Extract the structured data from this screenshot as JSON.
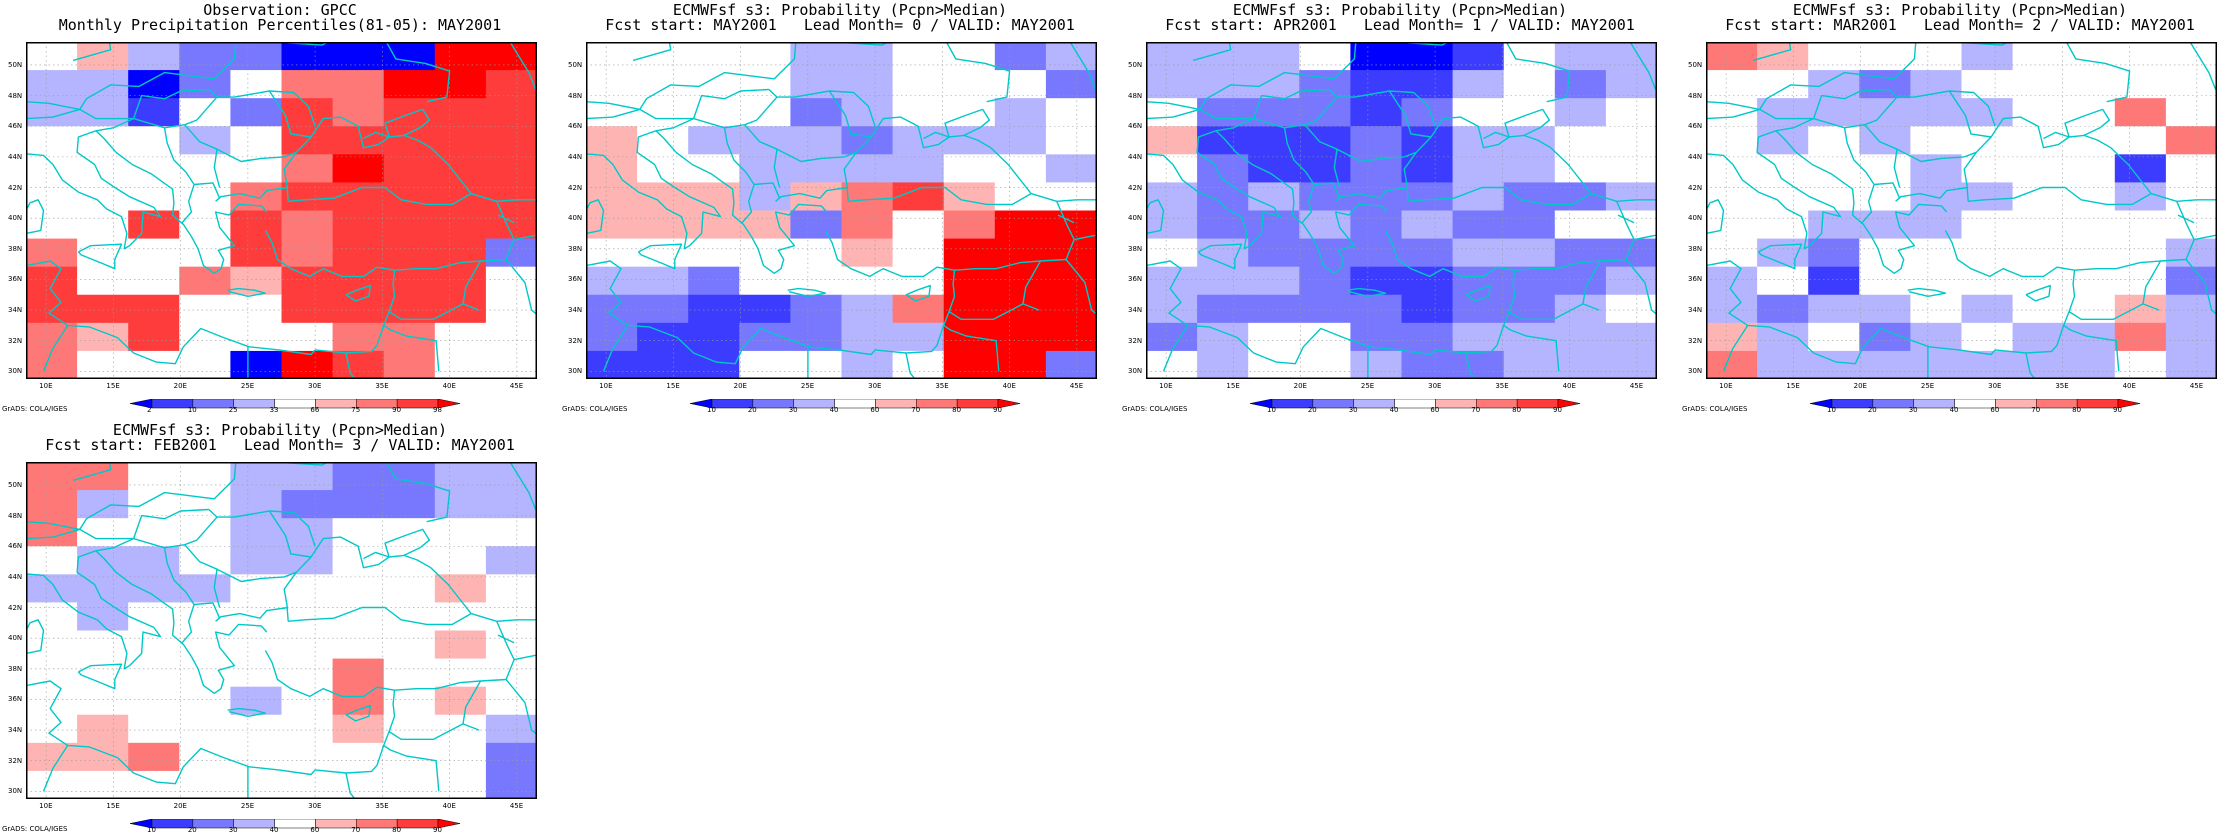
{
  "credit": "GrADS: COLA/IGES",
  "colors": {
    "coast": "#00c8c8",
    "grid": "#9a9a9a",
    "frame": "#000000"
  },
  "axes": {
    "lon": [
      "10E",
      "15E",
      "20E",
      "25E",
      "30E",
      "35E",
      "40E",
      "45E"
    ],
    "lat": [
      "30N",
      "32N",
      "34N",
      "36N",
      "38N",
      "40N",
      "42N",
      "44N",
      "46N",
      "48N",
      "50N"
    ]
  },
  "scales": {
    "obs": {
      "labels": [
        "2",
        "10",
        "25",
        "33",
        "66",
        "75",
        "90",
        "98"
      ],
      "colors": [
        "#0000ff",
        "#3c3cff",
        "#7878ff",
        "#b4b4ff",
        "#ffffff",
        "#ffb4b4",
        "#ff7878",
        "#ff3c3c",
        "#ff0000"
      ]
    },
    "fcst": {
      "labels": [
        "10",
        "20",
        "30",
        "40",
        "60",
        "70",
        "80",
        "90"
      ],
      "colors": [
        "#0000ff",
        "#3c3cff",
        "#7878ff",
        "#b4b4ff",
        "#ffffff",
        "#ffb4b4",
        "#ff7878",
        "#ff3c3c",
        "#ff0000"
      ]
    }
  },
  "panels": [
    {
      "title1": "Observation: GPCC",
      "title2": "Monthly Precipitation Percentiles(81-05): MAY2001",
      "scale": "obs",
      "grid": [
        "4532200088",
        "3302466887",
        "3314276777",
        "4443477777",
        "4444468777",
        "4444677777",
        "4474767777",
        "6444767772",
        "7446577774",
        "7774477774",
        "6574446644",
        "6444087644"
      ]
    },
    {
      "title1": "ECMWFsf s3: Probability (Pcpn>Median)",
      "title2": "Fcst start: MAY2001   Lead Month= 0 / VALID: MAY2001",
      "scale": "fcst",
      "grid": [
        "4444334423",
        "4444334442",
        "4444234434",
        "5433323334",
        "5443333443",
        "5553567544",
        "5555264688",
        "4444454888",
        "3324444888",
        "2211236888",
        "2112233888",
        "1114434882"
      ]
    },
    {
      "title1": "ECMWFsf s3: Probability (Pcpn>Median)",
      "title2": "Fcst start: APR2001   Lead Month= 1 / VALID: MAY2001",
      "scale": "fcst",
      "grid": [
        "3334001433",
        "3332113423",
        "4222124434",
        "5111213344",
        "4211213344",
        "3232223223",
        "3223232244",
        "4322223322",
        "3332112223",
        "3222212234",
        "2344223333",
        "4344322333"
      ]
    },
    {
      "title1": "ECMWFsf s3: Probability (Pcpn>Median)",
      "title2": "Fcst start: MAR2001   Lead Month= 2 / VALID: MAY2001",
      "scale": "fcst",
      "grid": [
        "6544434444",
        "4432344444",
        "4333334464",
        "4343444446",
        "4444344414",
        "4444334434",
        "4433344444",
        "4324444443",
        "3414444442",
        "3233434453",
        "5342343363",
        "6333333343"
      ]
    },
    {
      "title1": "ECMWFsf s3: Probability (Pcpn>Median)",
      "title2": "Fcst start: FEB2001   Lead Month= 3 / VALID: MAY2001",
      "scale": "fcst",
      "grid": [
        "6644332233",
        "6344322233",
        "6444334444",
        "4334334443",
        "3333444454",
        "4344444444",
        "4444444454",
        "4444446444",
        "4444346454",
        "4544445443",
        "5564444442",
        "4444444442"
      ]
    }
  ]
}
